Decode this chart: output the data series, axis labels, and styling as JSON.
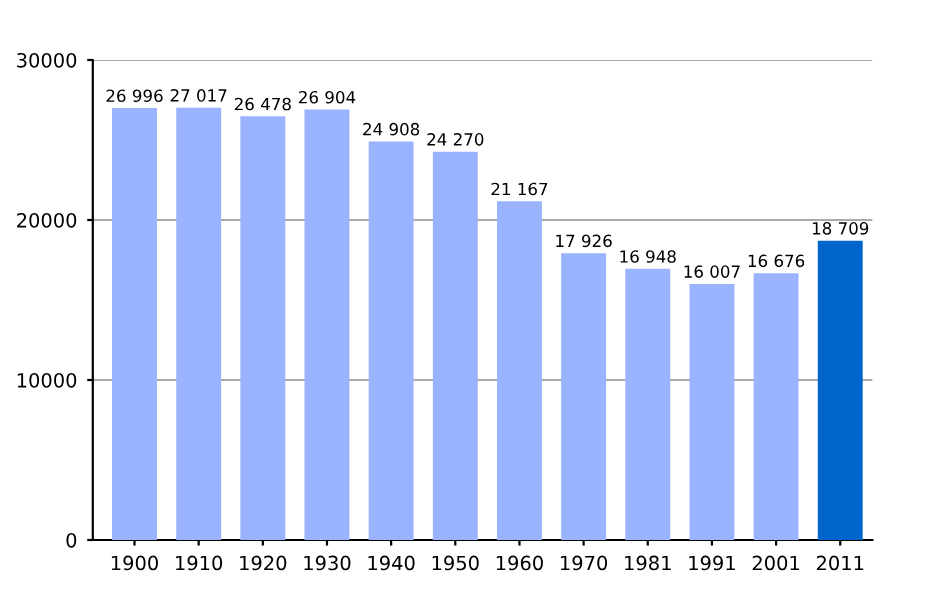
{
  "chart_data": {
    "type": "bar",
    "categories": [
      "1900",
      "1910",
      "1920",
      "1930",
      "1940",
      "1950",
      "1960",
      "1970",
      "1981",
      "1991",
      "2001",
      "2011"
    ],
    "values": [
      26996,
      27017,
      26478,
      26904,
      24908,
      24270,
      21167,
      17926,
      16948,
      16007,
      16676,
      18709
    ],
    "colors": [
      "#99b3ff",
      "#99b3ff",
      "#99b3ff",
      "#99b3ff",
      "#99b3ff",
      "#99b3ff",
      "#99b3ff",
      "#99b3ff",
      "#99b3ff",
      "#99b3ff",
      "#99b3ff",
      "#0066cc"
    ],
    "value_labels": [
      "26 996",
      "27 017",
      "26 478",
      "26 904",
      "24 908",
      "24 270",
      "21 167",
      "17 926",
      "16 948",
      "16 007",
      "16 676",
      "18 709"
    ],
    "ylim": [
      0,
      30000
    ],
    "yticks": [
      0,
      10000,
      20000,
      30000
    ],
    "grid": "y"
  }
}
